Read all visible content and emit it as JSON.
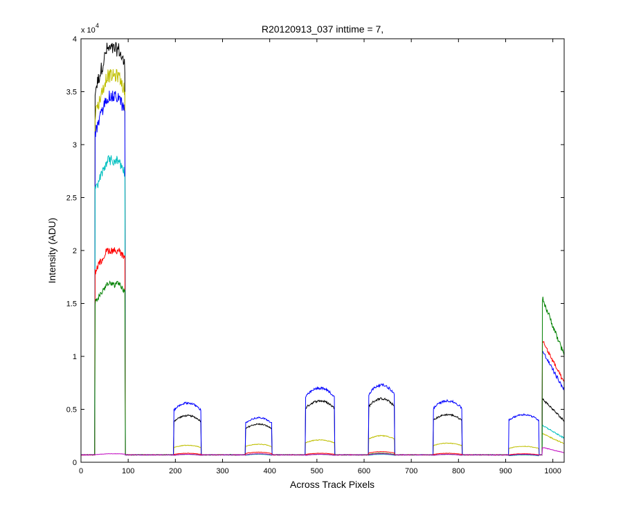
{
  "chart_data": {
    "type": "line",
    "title": "R20120913_037 inttime = 7,",
    "xlabel": "Across Track Pixels",
    "ylabel": "Intensity (ADU)",
    "xlim": [
      0,
      1024
    ],
    "ylim": [
      0,
      40000
    ],
    "y_exponent_label": "x 10",
    "y_exponent": "4",
    "x_ticks": [
      0,
      100,
      200,
      300,
      400,
      500,
      600,
      700,
      800,
      900,
      1000
    ],
    "y_ticks": [
      0,
      0.5,
      1,
      1.5,
      2,
      2.5,
      3,
      3.5,
      4
    ],
    "grid": false,
    "baseline": 700,
    "segments": [
      {
        "x1": 30,
        "x2": 93
      },
      {
        "x1": 197,
        "x2": 254
      },
      {
        "x1": 349,
        "x2": 404
      },
      {
        "x1": 476,
        "x2": 537
      },
      {
        "x1": 610,
        "x2": 664
      },
      {
        "x1": 747,
        "x2": 807
      },
      {
        "x1": 907,
        "x2": 970
      },
      {
        "x1": 978,
        "x2": 1024
      }
    ],
    "series": [
      {
        "color": "#000000",
        "levels": [
          39000,
          4400,
          3600,
          5800,
          6000,
          4500,
          700,
          6000
        ]
      },
      {
        "color": "#bfbf00",
        "levels": [
          36500,
          1600,
          1700,
          2100,
          2500,
          1800,
          1500,
          2700
        ]
      },
      {
        "color": "#0000ff",
        "levels": [
          34500,
          5600,
          4200,
          7000,
          7300,
          5800,
          4500,
          10500
        ]
      },
      {
        "color": "#00bfbf",
        "levels": [
          28500,
          750,
          750,
          750,
          750,
          750,
          700,
          3500
        ]
      },
      {
        "color": "#ff0000",
        "levels": [
          20000,
          850,
          950,
          850,
          1000,
          850,
          800,
          11500
        ]
      },
      {
        "color": "#008000",
        "levels": [
          16800,
          750,
          800,
          750,
          850,
          750,
          750,
          15500
        ]
      },
      {
        "color": "#bf00bf",
        "levels": [
          800,
          750,
          800,
          750,
          800,
          750,
          750,
          1400
        ]
      }
    ]
  }
}
